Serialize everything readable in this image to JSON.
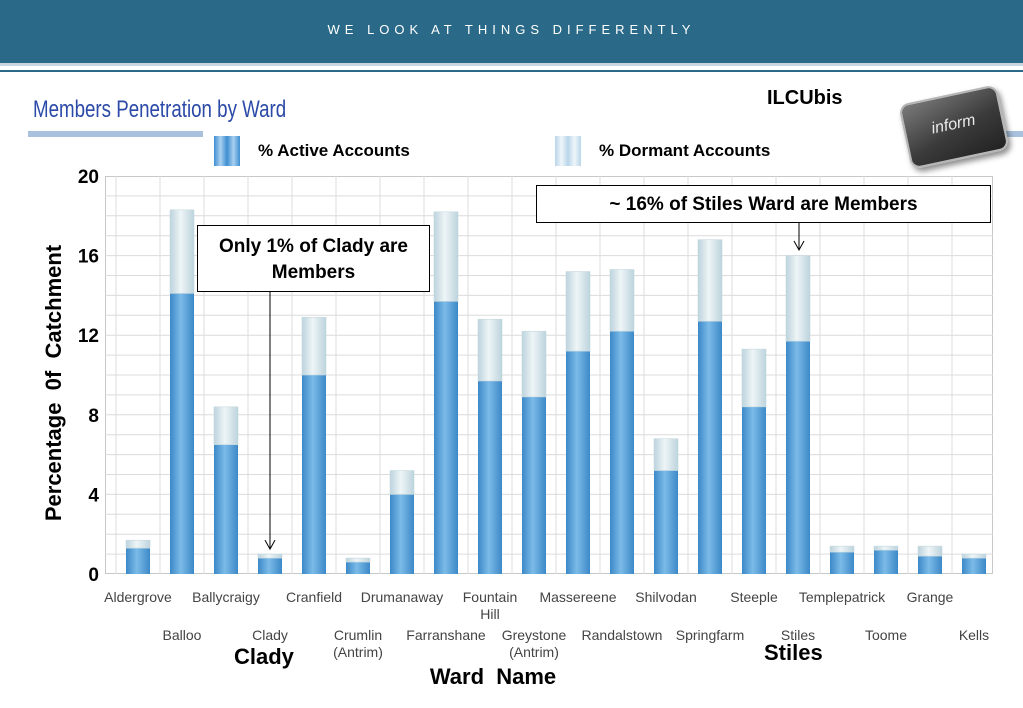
{
  "header": {
    "tagline": "WE LOOK AT THINGS DIFFERENTLY"
  },
  "brand": {
    "name": "ILCUbis",
    "key_label": "inform"
  },
  "colors": {
    "banner": "#2a6a88",
    "active": "#3f8fd2",
    "dormant": "#d8e8ec",
    "title": "#2b4aa8"
  },
  "chart_data": {
    "type": "bar",
    "stacked": true,
    "title": "Members Penetration by Ward",
    "xlabel": "Ward  Name",
    "ylabel": "Percentage  0f  Catchment",
    "ylim": [
      0,
      20
    ],
    "yticks": [
      0,
      4,
      8,
      12,
      16,
      20
    ],
    "grid": true,
    "legend_position": "top",
    "categories": [
      "Aldergrove",
      "Balloo",
      "Ballycraigy",
      "Clady",
      "Cranfield",
      "Crumlin\n(Antrim)",
      "Drumanaway",
      "Farranshane",
      "Fountain\nHill",
      "Greystone\n(Antrim)",
      "Massereene",
      "Randalstown",
      "Shilvodan",
      "Springfarm",
      "Steeple",
      "Stiles",
      "Templepatrick",
      "Toome",
      "Grange",
      "Kells"
    ],
    "series": [
      {
        "name": "% Active Accounts",
        "values": [
          1.3,
          14.1,
          6.5,
          0.8,
          10.0,
          0.6,
          4.0,
          13.7,
          9.7,
          8.9,
          11.2,
          12.2,
          5.2,
          12.7,
          8.4,
          11.7,
          1.1,
          1.2,
          0.9,
          0.8
        ]
      },
      {
        "name": "% Dormant Accounts",
        "values": [
          0.4,
          4.2,
          1.9,
          0.2,
          2.9,
          0.2,
          1.2,
          4.5,
          3.1,
          3.3,
          4.0,
          3.1,
          1.6,
          4.1,
          2.9,
          4.3,
          0.3,
          0.2,
          0.5,
          0.2
        ]
      }
    ]
  },
  "annotations": {
    "clady_box": "Only 1% of Clady are Members",
    "stiles_box": "~ 16% of Stiles Ward are Members",
    "clady_label": "Clady",
    "stiles_label": "Stiles"
  }
}
